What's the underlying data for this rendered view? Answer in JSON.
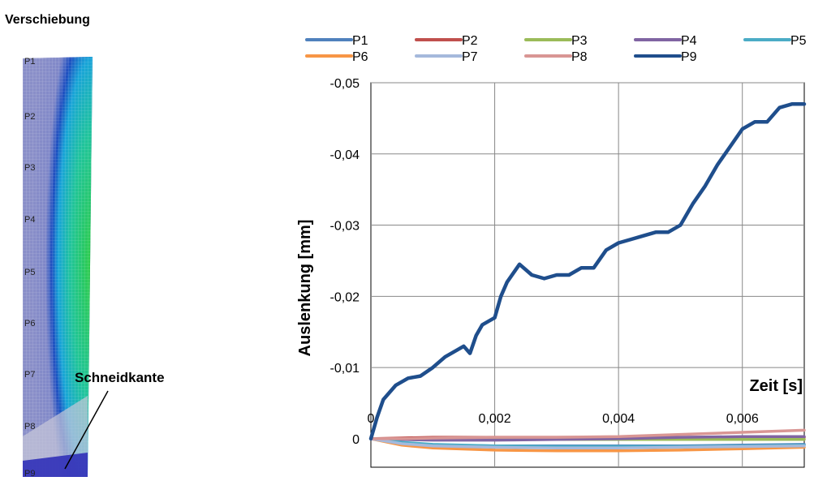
{
  "left_title": "Verschiebung",
  "simulation": {
    "point_labels": [
      "P1",
      "P2",
      "P3",
      "P4",
      "P5",
      "P6",
      "P7",
      "P8",
      "P9"
    ],
    "callout": "Schneidkante"
  },
  "chart_data": {
    "type": "line",
    "xlabel": "Zeit [s]",
    "ylabel": "Auslenkung [mm]",
    "xlim": [
      0,
      0.007
    ],
    "ylim": [
      0.004,
      -0.05
    ],
    "y_axis_inverted": true,
    "grid": true,
    "legend_position": "top",
    "x_ticks": [
      {
        "value": 0,
        "label": "0"
      },
      {
        "value": 0.002,
        "label": "0,002"
      },
      {
        "value": 0.004,
        "label": "0,004"
      },
      {
        "value": 0.006,
        "label": "0,006"
      }
    ],
    "y_ticks": [
      {
        "value": -0.05,
        "label": "-0,05"
      },
      {
        "value": -0.04,
        "label": "-0,04"
      },
      {
        "value": -0.03,
        "label": "-0,03"
      },
      {
        "value": -0.02,
        "label": "-0,02"
      },
      {
        "value": -0.01,
        "label": "-0,01"
      },
      {
        "value": 0,
        "label": "0"
      }
    ],
    "series": [
      {
        "name": "P1",
        "color": "#4f81bd",
        "x": [
          0,
          0.0005,
          0.001,
          0.002,
          0.003,
          0.004,
          0.005,
          0.006,
          0.007
        ],
        "y": [
          0,
          0.0006,
          0.0009,
          0.001,
          0.001,
          0.001,
          0.001,
          0.0009,
          0.0008
        ]
      },
      {
        "name": "P2",
        "color": "#c0504d",
        "x": [
          0,
          0.0005,
          0.001,
          0.002,
          0.003,
          0.004,
          0.005,
          0.006,
          0.007
        ],
        "y": [
          0,
          -0.0001,
          -0.0002,
          -0.0002,
          -0.0002,
          -0.0002,
          -0.0002,
          -0.0002,
          -0.0002
        ]
      },
      {
        "name": "P3",
        "color": "#9bbb59",
        "x": [
          0,
          0.0005,
          0.001,
          0.002,
          0.003,
          0.004,
          0.005,
          0.006,
          0.007
        ],
        "y": [
          0,
          0.0001,
          0.0001,
          0.0001,
          0.0001,
          0.0001,
          0.0001,
          0.0001,
          0.0001
        ]
      },
      {
        "name": "P4",
        "color": "#8064a2",
        "x": [
          0,
          0.0005,
          0.001,
          0.002,
          0.003,
          0.004,
          0.005,
          0.006,
          0.007
        ],
        "y": [
          0,
          0.0001,
          0.0002,
          0.0002,
          0.0001,
          0,
          -0.0002,
          -0.0003,
          -0.0003
        ]
      },
      {
        "name": "P5",
        "color": "#4bacc6",
        "x": [
          0,
          0.0005,
          0.001,
          0.002,
          0.003,
          0.004,
          0.005,
          0.006,
          0.007
        ],
        "y": [
          0,
          0.0005,
          0.0008,
          0.001,
          0.0011,
          0.0011,
          0.0011,
          0.001,
          0.0009
        ]
      },
      {
        "name": "P6",
        "color": "#f79646",
        "x": [
          0,
          0.0005,
          0.001,
          0.002,
          0.003,
          0.004,
          0.005,
          0.006,
          0.007
        ],
        "y": [
          0,
          0.0009,
          0.0013,
          0.0016,
          0.0017,
          0.0017,
          0.0016,
          0.0014,
          0.0012
        ]
      },
      {
        "name": "P7",
        "color": "#a5b9dc",
        "x": [
          0,
          0.0005,
          0.001,
          0.002,
          0.003,
          0.004,
          0.005,
          0.006,
          0.007
        ],
        "y": [
          0,
          0.0007,
          0.001,
          0.0012,
          0.0013,
          0.0013,
          0.0012,
          0.0011,
          0.001
        ]
      },
      {
        "name": "P8",
        "color": "#d99694",
        "x": [
          0,
          0.0005,
          0.001,
          0.002,
          0.003,
          0.004,
          0.005,
          0.006,
          0.007
        ],
        "y": [
          0,
          0,
          -0.0001,
          -0.0002,
          -0.0002,
          -0.0003,
          -0.0006,
          -0.0009,
          -0.0012
        ]
      },
      {
        "name": "P9",
        "color": "#1f4e8c",
        "x": [
          0,
          0.0001,
          0.0002,
          0.0004,
          0.0006,
          0.0008,
          0.001,
          0.0012,
          0.0014,
          0.0015,
          0.0016,
          0.0017,
          0.0018,
          0.0019,
          0.002,
          0.0021,
          0.0022,
          0.0024,
          0.0026,
          0.0028,
          0.003,
          0.0032,
          0.0034,
          0.0036,
          0.0038,
          0.004,
          0.0042,
          0.0044,
          0.0046,
          0.0048,
          0.005,
          0.0052,
          0.0054,
          0.0056,
          0.0058,
          0.006,
          0.0062,
          0.0064,
          0.0066,
          0.0068,
          0.007
        ],
        "y": [
          0,
          -0.003,
          -0.0055,
          -0.0075,
          -0.0085,
          -0.0088,
          -0.01,
          -0.0115,
          -0.0125,
          -0.013,
          -0.012,
          -0.0145,
          -0.016,
          -0.0165,
          -0.017,
          -0.02,
          -0.022,
          -0.0245,
          -0.023,
          -0.0225,
          -0.023,
          -0.023,
          -0.024,
          -0.024,
          -0.0265,
          -0.0275,
          -0.028,
          -0.0285,
          -0.029,
          -0.029,
          -0.03,
          -0.033,
          -0.0355,
          -0.0385,
          -0.041,
          -0.0435,
          -0.0445,
          -0.0445,
          -0.0465,
          -0.047,
          -0.047
        ]
      }
    ]
  }
}
